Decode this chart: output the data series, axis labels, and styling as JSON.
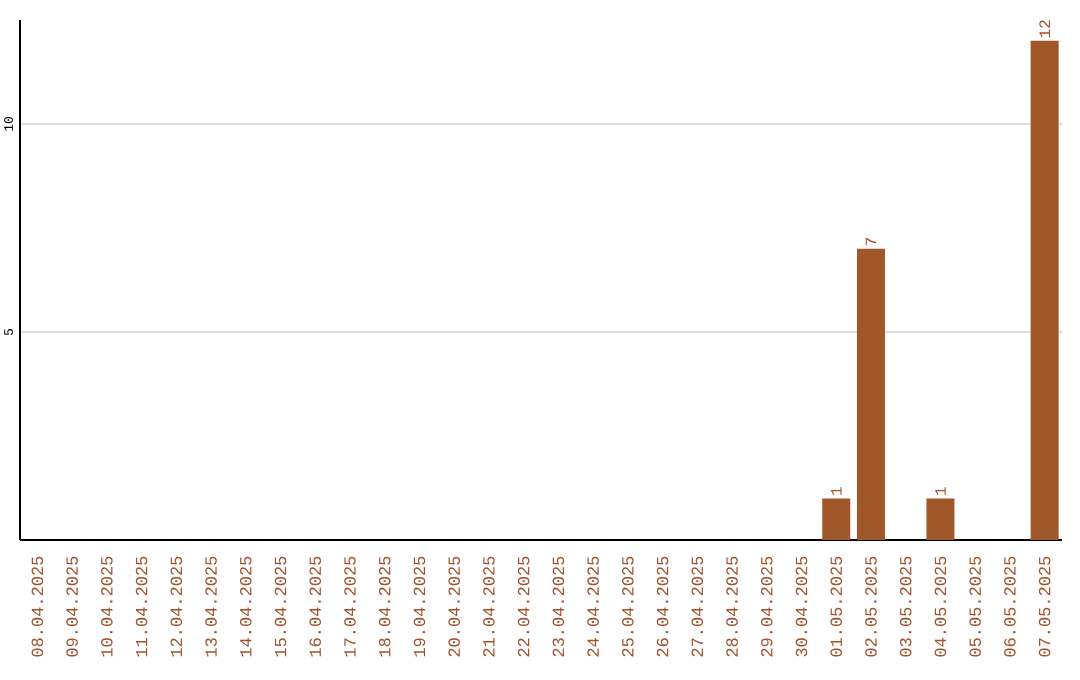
{
  "chart_data": {
    "type": "bar",
    "categories": [
      "08.04.2025",
      "09.04.2025",
      "10.04.2025",
      "11.04.2025",
      "12.04.2025",
      "13.04.2025",
      "14.04.2025",
      "15.04.2025",
      "16.04.2025",
      "17.04.2025",
      "18.04.2025",
      "19.04.2025",
      "20.04.2025",
      "21.04.2025",
      "22.04.2025",
      "23.04.2025",
      "24.04.2025",
      "25.04.2025",
      "26.04.2025",
      "27.04.2025",
      "28.04.2025",
      "29.04.2025",
      "30.04.2025",
      "01.05.2025",
      "02.05.2025",
      "03.05.2025",
      "04.05.2025",
      "05.05.2025",
      "06.05.2025",
      "07.05.2025"
    ],
    "values": [
      0,
      0,
      0,
      0,
      0,
      0,
      0,
      0,
      0,
      0,
      0,
      0,
      0,
      0,
      0,
      0,
      0,
      0,
      0,
      0,
      0,
      0,
      0,
      1,
      7,
      0,
      1,
      0,
      0,
      12
    ],
    "value_labels": [
      null,
      null,
      null,
      null,
      null,
      null,
      null,
      null,
      null,
      null,
      null,
      null,
      null,
      null,
      null,
      null,
      null,
      null,
      null,
      null,
      null,
      null,
      null,
      "1",
      "7",
      null,
      "1",
      null,
      null,
      "12"
    ],
    "color": "#a0582a",
    "ylim": [
      0,
      12.5
    ],
    "yticks": [
      5,
      10
    ],
    "grid": "y"
  }
}
